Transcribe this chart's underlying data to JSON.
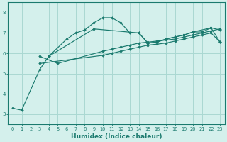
{
  "xlabel": "Humidex (Indice chaleur)",
  "background_color": "#d4f0ec",
  "grid_color": "#aad8d2",
  "line_color": "#1a7a6e",
  "xlim": [
    -0.5,
    23.5
  ],
  "ylim": [
    2.5,
    8.5
  ],
  "yticks": [
    3,
    4,
    5,
    6,
    7,
    8
  ],
  "xticks": [
    0,
    1,
    2,
    3,
    4,
    5,
    6,
    7,
    8,
    9,
    10,
    11,
    12,
    13,
    14,
    15,
    16,
    17,
    18,
    19,
    20,
    21,
    22,
    23
  ],
  "series": [
    [
      [
        0,
        3.3
      ],
      [
        1,
        3.2
      ],
      [
        3,
        5.2
      ],
      [
        4,
        5.85
      ],
      [
        6,
        6.7
      ],
      [
        7,
        7.0
      ],
      [
        8,
        7.15
      ],
      [
        9,
        7.5
      ],
      [
        10,
        7.75
      ],
      [
        11,
        7.75
      ],
      [
        12,
        7.5
      ],
      [
        13,
        7.0
      ],
      [
        14,
        7.0
      ],
      [
        15,
        6.5
      ],
      [
        16,
        6.55
      ],
      [
        17,
        6.7
      ],
      [
        18,
        6.8
      ],
      [
        19,
        6.9
      ],
      [
        20,
        7.05
      ],
      [
        21,
        7.05
      ],
      [
        22,
        7.25
      ],
      [
        23,
        7.15
      ]
    ],
    [
      [
        4,
        5.85
      ],
      [
        9,
        7.2
      ],
      [
        14,
        7.0
      ],
      [
        15,
        6.5
      ],
      [
        16,
        6.55
      ],
      [
        17,
        6.7
      ],
      [
        18,
        6.8
      ],
      [
        19,
        6.9
      ],
      [
        20,
        7.05
      ],
      [
        22,
        7.25
      ],
      [
        23,
        6.55
      ]
    ],
    [
      [
        3,
        5.85
      ],
      [
        5,
        5.5
      ],
      [
        10,
        6.1
      ],
      [
        11,
        6.2
      ],
      [
        12,
        6.3
      ],
      [
        13,
        6.4
      ],
      [
        14,
        6.5
      ],
      [
        15,
        6.55
      ],
      [
        16,
        6.6
      ],
      [
        17,
        6.65
      ],
      [
        18,
        6.7
      ],
      [
        19,
        6.8
      ],
      [
        20,
        6.9
      ],
      [
        21,
        7.0
      ],
      [
        22,
        7.1
      ],
      [
        23,
        7.2
      ]
    ],
    [
      [
        3,
        5.5
      ],
      [
        10,
        5.9
      ],
      [
        11,
        6.0
      ],
      [
        12,
        6.1
      ],
      [
        13,
        6.2
      ],
      [
        14,
        6.3
      ],
      [
        15,
        6.4
      ],
      [
        16,
        6.45
      ],
      [
        17,
        6.5
      ],
      [
        18,
        6.6
      ],
      [
        19,
        6.7
      ],
      [
        20,
        6.8
      ],
      [
        21,
        6.9
      ],
      [
        22,
        7.0
      ],
      [
        23,
        6.55
      ]
    ]
  ]
}
